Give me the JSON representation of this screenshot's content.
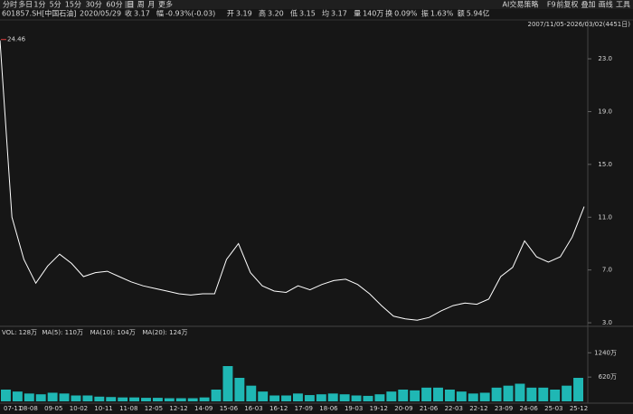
{
  "toolbar": {
    "periods": [
      "分时",
      "多日",
      "1分",
      "5分",
      "15分",
      "30分",
      "60分",
      "日",
      "周",
      "月",
      "更多"
    ],
    "active": "日",
    "tools": [
      "AI交易策略",
      "F9",
      "前复权",
      "叠加",
      "画线",
      "工具"
    ]
  },
  "quote": {
    "code": "601857.SH[中国石油]",
    "date": "2020/05/29",
    "fields": [
      {
        "label": "收",
        "value": "3.17",
        "color": "#2ecc40"
      },
      {
        "label": "幅",
        "value": "-0.93%(-0.03)",
        "color": "#2ecc40"
      },
      {
        "label": "开",
        "value": "3.19",
        "color": "#2ecc40"
      },
      {
        "label": "高",
        "value": "3.20",
        "color": "#e0e0e0"
      },
      {
        "label": "低",
        "value": "3.15",
        "color": "#2ecc40"
      },
      {
        "label": "均",
        "value": "3.17",
        "color": "#2ecc40"
      },
      {
        "label": "量",
        "value": "140万",
        "color": "#e0e0e0"
      },
      {
        "label": "换",
        "value": "0.09%",
        "color": "#e0e0e0"
      },
      {
        "label": "振",
        "value": "1.63%",
        "color": "#e0e0e0"
      },
      {
        "label": "额",
        "value": "5.94亿",
        "color": "#e0e0e0"
      }
    ]
  },
  "chart_data": [
    {
      "type": "line",
      "range": "2007/11/05-2026/03/02(4451日)",
      "max_marker": 24.46,
      "color": "#ffffff",
      "values": [
        24.4,
        11.0,
        7.8,
        6.0,
        7.3,
        8.2,
        7.5,
        6.5,
        6.8,
        6.9,
        6.5,
        6.1,
        5.8,
        5.6,
        5.4,
        5.2,
        5.1,
        5.2,
        5.2,
        7.8,
        9.0,
        6.8,
        5.8,
        5.4,
        5.3,
        5.8,
        5.5,
        5.9,
        6.2,
        6.3,
        5.9,
        5.2,
        4.3,
        3.5,
        3.3,
        3.2,
        3.4,
        3.9,
        4.3,
        4.5,
        4.4,
        4.8,
        6.5,
        7.2,
        9.2,
        8.0,
        7.6,
        8.0,
        9.5,
        11.8
      ],
      "ylim": [
        2.8,
        25.4
      ],
      "yticks": [
        {
          "value": 3,
          "label": "3.0"
        },
        {
          "value": 7,
          "label": "7.0"
        },
        {
          "value": 11,
          "label": "11.0"
        },
        {
          "value": 15,
          "label": "15.0"
        },
        {
          "value": 19,
          "label": "19.0"
        },
        {
          "value": 23,
          "label": "23.0"
        }
      ]
    },
    {
      "type": "bar",
      "color": "#1fb7b4",
      "legend": [
        {
          "text": "VOL: 128万",
          "color": "#e0e0e0"
        },
        {
          "text": "MA(5): 110万",
          "color": "#e0e0e0"
        },
        {
          "text": "MA(10): 104万",
          "color": "#f0a030"
        },
        {
          "text": "MA(20): 124万",
          "color": "#d050d0"
        }
      ],
      "values": [
        300,
        250,
        200,
        180,
        220,
        200,
        150,
        150,
        120,
        110,
        100,
        100,
        90,
        90,
        80,
        80,
        80,
        100,
        300,
        900,
        600,
        400,
        250,
        150,
        150,
        200,
        160,
        180,
        200,
        180,
        150,
        140,
        180,
        250,
        300,
        280,
        350,
        350,
        300,
        250,
        200,
        220,
        350,
        400,
        450,
        350,
        350,
        300,
        400,
        600
      ],
      "ylim": [
        0,
        1800
      ],
      "yticks": [
        {
          "value": 620,
          "label": "620万"
        },
        {
          "value": 1240,
          "label": "1240万"
        }
      ],
      "x_labels": [
        "07-11",
        "08-08",
        "09-05",
        "10-02",
        "10-11",
        "11-08",
        "12-05",
        "12-12",
        "14-09",
        "15-06",
        "16-03",
        "16-12",
        "17-09",
        "18-06",
        "19-03",
        "19-12",
        "20-09",
        "21-06",
        "22-03",
        "22-12",
        "23-09",
        "24-06",
        "25-03",
        "25-12"
      ]
    }
  ]
}
